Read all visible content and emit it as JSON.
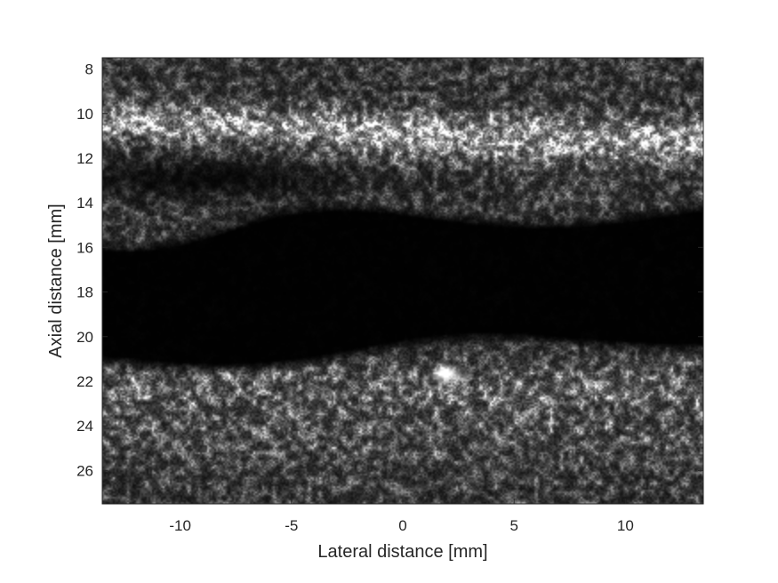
{
  "image": {
    "kind": "B-mode ultrasound image",
    "colormap": "grayscale",
    "background_color": "#000000",
    "frame_color": "#262626"
  },
  "axes": {
    "x_label": "Lateral distance [mm]",
    "y_label": "Axial distance [mm]",
    "x_range": [
      -13.5,
      13.5
    ],
    "y_range": [
      7.5,
      27.5
    ],
    "y_reversed": true,
    "x_ticks": [
      {
        "value": -10,
        "label": "-10"
      },
      {
        "value": -5,
        "label": "-5"
      },
      {
        "value": 0,
        "label": "0"
      },
      {
        "value": 5,
        "label": "5"
      },
      {
        "value": 10,
        "label": "10"
      }
    ],
    "y_ticks": [
      {
        "value": 8,
        "label": "8"
      },
      {
        "value": 10,
        "label": "10"
      },
      {
        "value": 12,
        "label": "12"
      },
      {
        "value": 14,
        "label": "14"
      },
      {
        "value": 16,
        "label": "16"
      },
      {
        "value": 18,
        "label": "18"
      },
      {
        "value": 20,
        "label": "20"
      },
      {
        "value": 22,
        "label": "22"
      },
      {
        "value": 24,
        "label": "24"
      },
      {
        "value": 26,
        "label": "26"
      }
    ]
  }
}
